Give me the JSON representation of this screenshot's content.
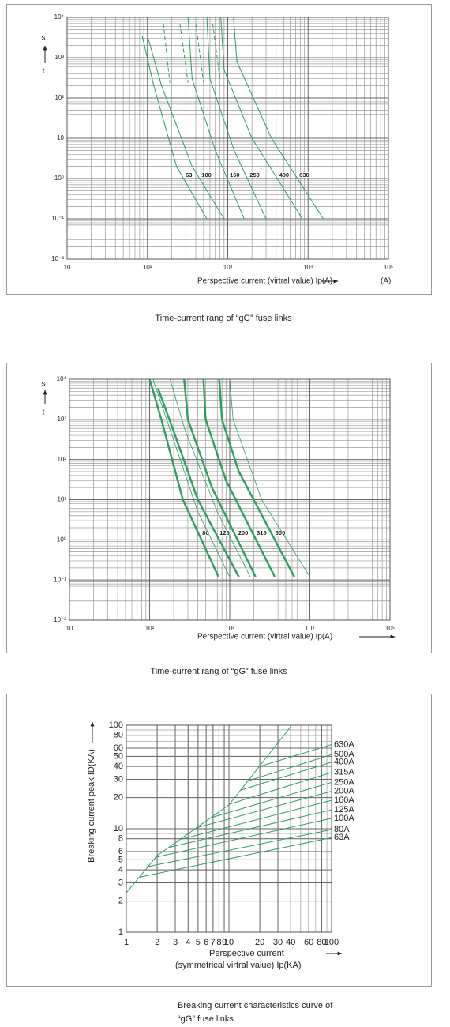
{
  "chart_data": [
    {
      "type": "line",
      "caption": "Time-current rang of “gG” fuse links",
      "x_label": "Perspective current (virtral value) Ip(A)",
      "x_unit": "(A)",
      "y_label_top": "s",
      "y_label_bottom": "t",
      "xscale": "log",
      "yscale": "log",
      "xlim": [
        10,
        100000
      ],
      "ylim": [
        0.01,
        10000
      ],
      "xticks": [
        10,
        {
          "value": 100,
          "label": "10²"
        },
        {
          "value": 1000,
          "label": "10³"
        },
        {
          "value": 10000,
          "label": "10⁴"
        },
        {
          "value": 100000,
          "label": "10⁵"
        }
      ],
      "yticks": [
        {
          "value": 0.01,
          "label": "10⁻²"
        },
        {
          "value": 0.1,
          "label": "10⁻¹"
        },
        {
          "value": 1,
          "label": "10⁰"
        },
        10,
        {
          "value": 100,
          "label": "10²"
        },
        {
          "value": 1000,
          "label": "10³"
        },
        {
          "value": 10000,
          "label": "10⁴"
        }
      ],
      "grid": true,
      "minor_grid": true,
      "color": "#2e9e5e",
      "series": [
        {
          "name": "63",
          "x": [
            86,
            120,
            230,
            550
          ],
          "values": [
            3500,
            200,
            2,
            0.1
          ]
        },
        {
          "name": "100",
          "x": [
            100,
            150,
            360,
            900
          ],
          "values": [
            3500,
            200,
            2,
            0.1
          ]
        },
        {
          "name": "160",
          "x": [
            320,
            360,
            700,
            1600
          ],
          "values": [
            10000,
            300,
            5,
            0.1
          ]
        },
        {
          "name": "250",
          "x": [
            550,
            600,
            1200,
            3000
          ],
          "values": [
            10000,
            300,
            5,
            0.1
          ]
        },
        {
          "name": "400",
          "x": [
            820,
            900,
            2000,
            8500
          ],
          "values": [
            10000,
            500,
            10,
            0.1
          ]
        },
        {
          "name": "630",
          "x": [
            1180,
            1300,
            3500,
            15500
          ],
          "values": [
            10000,
            800,
            10,
            0.1
          ]
        },
        {
          "x": [
            158,
            190
          ],
          "values": [
            7000,
            240
          ],
          "style": "dashed"
        },
        {
          "x": [
            254,
            320
          ],
          "values": [
            7000,
            240
          ],
          "style": "dashed"
        },
        {
          "x": [
            400,
            500
          ],
          "values": [
            7000,
            240
          ],
          "style": "dashed"
        },
        {
          "x": [
            650,
            800
          ],
          "values": [
            7000,
            300
          ],
          "style": "dashed"
        }
      ]
    },
    {
      "type": "line",
      "caption": "Time-current rang of “gG” fuse links",
      "x_label": "Perspective current (virtral value) Ip(A)",
      "y_label_top": "s",
      "y_label_bottom": "t",
      "xscale": "log",
      "yscale": "log",
      "xlim": [
        10,
        100000
      ],
      "ylim": [
        0.01,
        10000
      ],
      "xticks": [
        10,
        {
          "value": 100,
          "label": "10²"
        },
        {
          "value": 1000,
          "label": "10³"
        },
        {
          "value": 10000,
          "label": "10⁴"
        },
        {
          "value": 100000,
          "label": "10⁵"
        }
      ],
      "yticks": [
        {
          "value": 0.01,
          "label": "10⁻²"
        },
        {
          "value": 0.1,
          "label": "10⁻¹"
        },
        {
          "value": 1,
          "label": "10⁰"
        },
        {
          "value": 10,
          "label": "10¹"
        },
        {
          "value": 100,
          "label": "10²"
        },
        {
          "value": 1000,
          "label": "10³"
        },
        {
          "value": 10000,
          "label": "10⁴"
        }
      ],
      "grid": true,
      "minor_grid": true,
      "color": "#2e9e5e",
      "series": [
        {
          "name": "80",
          "x": [
            100,
            140,
            260,
            725
          ],
          "values": [
            10000,
            1000,
            10,
            0.12
          ],
          "style": "bold"
        },
        {
          "name": "125",
          "x": [
            127,
            200,
            400,
            1300
          ],
          "values": [
            6000,
            500,
            10,
            0.12
          ],
          "style": "bold"
        },
        {
          "name": "200",
          "x": [
            270,
            300,
            600,
            2100
          ],
          "values": [
            10000,
            1000,
            20,
            0.12
          ],
          "style": "bold"
        },
        {
          "name": "315",
          "x": [
            470,
            500,
            900,
            3650
          ],
          "values": [
            10000,
            1000,
            30,
            0.12
          ],
          "style": "bold"
        },
        {
          "name": "500",
          "x": [
            740,
            800,
            1300,
            6400
          ],
          "values": [
            10000,
            1000,
            50,
            0.12
          ],
          "style": "bold"
        },
        {
          "x": [
            110,
            200,
            400,
            1000
          ],
          "values": [
            10000,
            300,
            5,
            0.12
          ],
          "style": "thin"
        },
        {
          "x": [
            180,
            280,
            700,
            1800
          ],
          "values": [
            10000,
            500,
            5,
            0.12
          ],
          "style": "thin"
        },
        {
          "x": [
            1000,
            1100,
            2500,
            10000
          ],
          "values": [
            10000,
            1000,
            10,
            0.12
          ],
          "style": "thin"
        }
      ]
    },
    {
      "type": "line",
      "caption": [
        "Breaking current characteristics curve of",
        "“gG” fuse links"
      ],
      "x_label": [
        "Perspective current",
        "(symmetrical virtral value) Ip(KA)"
      ],
      "y_label": "Breaking current peak ID(KA)",
      "xscale": "log",
      "yscale": "log",
      "xlim": [
        1,
        100
      ],
      "ylim": [
        1,
        100
      ],
      "xticks": [
        1,
        2,
        3,
        4,
        5,
        6,
        7,
        8,
        9,
        10,
        20,
        30,
        40,
        60,
        80,
        100
      ],
      "yticks": [
        1,
        2,
        3,
        4,
        5,
        6,
        8,
        10,
        20,
        30,
        40,
        50,
        60,
        80,
        100
      ],
      "grid": true,
      "minor_grid": true,
      "color": "#2e9e5e",
      "series": [
        {
          "name": "630A",
          "x": [
            20,
            100
          ],
          "values": [
            40,
            65
          ]
        },
        {
          "name": "500A",
          "x": [
            15.3,
            100
          ],
          "values": [
            29,
            52
          ]
        },
        {
          "name": "400A",
          "x": [
            13,
            100
          ],
          "values": [
            23.6,
            44
          ]
        },
        {
          "name": "315A",
          "x": [
            10,
            100
          ],
          "values": [
            17.2,
            35
          ]
        },
        {
          "name": "250A",
          "x": [
            6.7,
            100
          ],
          "values": [
            12.8,
            28
          ]
        },
        {
          "name": "200A",
          "x": [
            4.8,
            100
          ],
          "values": [
            10.2,
            23
          ]
        },
        {
          "name": "160A",
          "x": [
            3.4,
            100
          ],
          "values": [
            7.9,
            18.8
          ]
        },
        {
          "name": "125A",
          "x": [
            2.6,
            100
          ],
          "values": [
            6.6,
            15.2
          ]
        },
        {
          "name": "100A",
          "x": [
            1.93,
            100
          ],
          "values": [
            5.3,
            12.6
          ]
        },
        {
          "name": "80A",
          "x": [
            1.62,
            100
          ],
          "values": [
            4.3,
            9.8
          ]
        },
        {
          "name": "63A",
          "x": [
            1.34,
            100
          ],
          "values": [
            3.4,
            8.2
          ]
        },
        {
          "x": [
            1,
            2,
            10,
            41
          ],
          "values": [
            2.4,
            5.5,
            17,
            100
          ]
        }
      ]
    }
  ]
}
